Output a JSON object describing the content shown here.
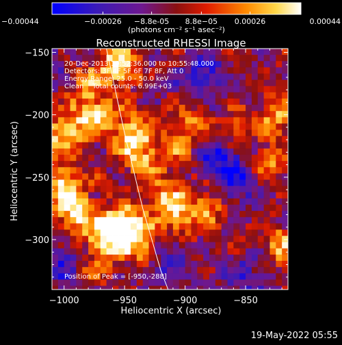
{
  "chart_data": {
    "type": "heatmap",
    "title": "Reconstructed RHESSI Image",
    "xlabel": "Heliocentric X (arcsec)",
    "ylabel": "Heliocentric Y (arcsec)",
    "xlim": [
      -1010,
      -815
    ],
    "ylim": [
      -340,
      -147
    ],
    "x_ticks": [
      "-1000",
      "-950",
      "-900",
      "-850"
    ],
    "x_tick_values": [
      -1000,
      -950,
      -900,
      -850
    ],
    "y_ticks": [
      "-150",
      "-200",
      "-250",
      "-300"
    ],
    "y_tick_values": [
      -150,
      -200,
      -250,
      -300
    ],
    "colorbar": {
      "ticks": [
        "-0.00044",
        "-0.00026",
        "-8.8e-05",
        "8.8e-05",
        "0.00026",
        "0.00044"
      ],
      "tick_values": [
        -0.00044,
        -0.00026,
        -8.8e-05,
        8.8e-05,
        0.00026,
        0.00044
      ],
      "range": [
        -0.00044,
        0.00044
      ],
      "units": "(photons cm⁻² s⁻¹ asec⁻²)"
    },
    "annotations": [
      "20-Dec-2013 10:52:36.000 to 10:55:48.000",
      "Detectors: 3F 4F 5F 6F 7F 8F, Att 0",
      "Energy Range: 25.0 - 50.0 keV",
      "Clean    Total counts: 6.99E+03"
    ],
    "peak_label": "Position of Peak = [-950,-288]",
    "peak": [
      -950,
      -288
    ],
    "limb_curve": [
      [
        -965,
        -147
      ],
      [
        -950,
        -215
      ],
      [
        -935,
        -275
      ],
      [
        -920,
        -325
      ],
      [
        -914,
        -340
      ]
    ],
    "hot_regions": [
      {
        "x": -955,
        "y": -160,
        "weight": 0.9
      },
      {
        "x": -985,
        "y": -172,
        "weight": 0.7
      },
      {
        "x": -975,
        "y": -200,
        "weight": 0.85
      },
      {
        "x": -1000,
        "y": -215,
        "weight": 0.8
      },
      {
        "x": -945,
        "y": -215,
        "weight": 0.75
      },
      {
        "x": -935,
        "y": -235,
        "weight": 0.6
      },
      {
        "x": -1000,
        "y": -255,
        "weight": 0.85
      },
      {
        "x": -990,
        "y": -280,
        "weight": 0.9
      },
      {
        "x": -950,
        "y": -288,
        "weight": 1.0
      },
      {
        "x": -965,
        "y": -300,
        "weight": 0.85
      },
      {
        "x": -935,
        "y": -305,
        "weight": 0.7
      },
      {
        "x": -915,
        "y": -265,
        "weight": 0.65
      },
      {
        "x": -905,
        "y": -285,
        "weight": 0.55
      },
      {
        "x": -880,
        "y": -272,
        "weight": 0.6
      },
      {
        "x": -860,
        "y": -215,
        "weight": 0.55
      },
      {
        "x": -825,
        "y": -200,
        "weight": 0.6
      },
      {
        "x": -830,
        "y": -240,
        "weight": 0.5
      },
      {
        "x": -820,
        "y": -305,
        "weight": 0.6
      },
      {
        "x": -895,
        "y": -205,
        "weight": 0.45
      },
      {
        "x": -905,
        "y": -225,
        "weight": 0.45
      },
      {
        "x": -980,
        "y": -325,
        "weight": 0.4
      }
    ],
    "cold_regions": [
      {
        "x": -870,
        "y": -230,
        "weight": 0.9
      },
      {
        "x": -885,
        "y": -170,
        "weight": 0.8
      },
      {
        "x": -915,
        "y": -315,
        "weight": 0.7
      },
      {
        "x": -995,
        "y": -165,
        "weight": 0.6
      },
      {
        "x": -1000,
        "y": -320,
        "weight": 0.7
      },
      {
        "x": -850,
        "y": -330,
        "weight": 0.6
      },
      {
        "x": -860,
        "y": -255,
        "weight": 0.8
      }
    ]
  },
  "footer": {
    "timestamp": "19-May-2022 05:55"
  }
}
